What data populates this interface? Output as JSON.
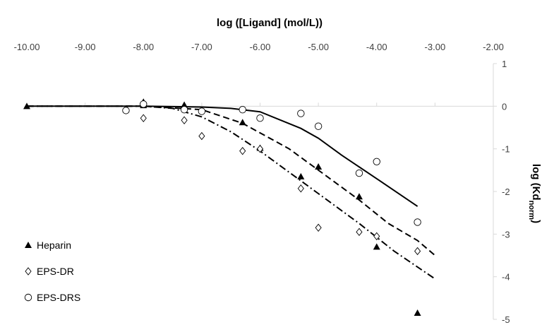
{
  "chart_data": {
    "type": "scatter",
    "xlabel": "log ([Ligand] (mol/L))",
    "ylabel": "log (Kd",
    "ylabel_subscript": "norm",
    "ylabel_suffix": ")",
    "xlim": [
      -10,
      -2
    ],
    "ylim": [
      -5,
      1
    ],
    "x_ticks": [
      -10,
      -9,
      -8,
      -7,
      -6,
      -5,
      -4,
      -3,
      -2
    ],
    "x_tick_labels": [
      "-10.00",
      "-9.00",
      "-8.00",
      "-7.00",
      "-6.00",
      "-5.00",
      "-4.00",
      "-3.00",
      "-2.00"
    ],
    "y_ticks": [
      1,
      0,
      -1,
      -2,
      -3,
      -4,
      -5
    ],
    "y_tick_labels": [
      "1",
      "0",
      "-1",
      "-2",
      "-3",
      "-4",
      "-5"
    ],
    "x_axis_position": "top",
    "y_axis_position": "right",
    "grid": false,
    "legend_position": "bottom-left",
    "series": [
      {
        "name": "Heparin",
        "marker": "filled-triangle",
        "points": [
          {
            "x": -10.0,
            "y": 0.0
          },
          {
            "x": -8.0,
            "y": 0.1
          },
          {
            "x": -8.0,
            "y": 0.02
          },
          {
            "x": -7.3,
            "y": 0.03
          },
          {
            "x": -6.3,
            "y": -0.38
          },
          {
            "x": -6.0,
            "y": -0.98
          },
          {
            "x": -5.3,
            "y": -1.65
          },
          {
            "x": -5.0,
            "y": -1.42
          },
          {
            "x": -4.3,
            "y": -2.12
          },
          {
            "x": -4.0,
            "y": -3.3
          },
          {
            "x": -3.3,
            "y": -4.85
          }
        ],
        "trend_style": "dashed",
        "trend": [
          {
            "x": -10.0,
            "y": 0.0
          },
          {
            "x": -8.0,
            "y": 0.0
          },
          {
            "x": -7.0,
            "y": -0.08
          },
          {
            "x": -6.3,
            "y": -0.4
          },
          {
            "x": -5.5,
            "y": -1.0
          },
          {
            "x": -5.0,
            "y": -1.5
          },
          {
            "x": -4.3,
            "y": -2.2
          },
          {
            "x": -3.8,
            "y": -2.75
          },
          {
            "x": -3.3,
            "y": -3.15
          },
          {
            "x": -3.0,
            "y": -3.5
          }
        ]
      },
      {
        "name": "EPS-DR",
        "marker": "open-diamond",
        "points": [
          {
            "x": -8.0,
            "y": -0.28
          },
          {
            "x": -7.3,
            "y": -0.33
          },
          {
            "x": -7.0,
            "y": -0.7
          },
          {
            "x": -6.3,
            "y": -1.05
          },
          {
            "x": -6.0,
            "y": -1.0
          },
          {
            "x": -5.3,
            "y": -1.93
          },
          {
            "x": -5.0,
            "y": -2.85
          },
          {
            "x": -4.3,
            "y": -2.95
          },
          {
            "x": -4.0,
            "y": -3.05
          },
          {
            "x": -3.3,
            "y": -3.4
          }
        ],
        "trend_style": "dash-dot",
        "trend": [
          {
            "x": -10.0,
            "y": 0.0
          },
          {
            "x": -8.0,
            "y": 0.0
          },
          {
            "x": -7.5,
            "y": -0.05
          },
          {
            "x": -7.0,
            "y": -0.25
          },
          {
            "x": -6.5,
            "y": -0.6
          },
          {
            "x": -6.0,
            "y": -1.05
          },
          {
            "x": -5.3,
            "y": -1.75
          },
          {
            "x": -5.0,
            "y": -2.05
          },
          {
            "x": -4.3,
            "y": -2.75
          },
          {
            "x": -3.7,
            "y": -3.4
          },
          {
            "x": -3.0,
            "y": -4.05
          }
        ]
      },
      {
        "name": "EPS-DRS",
        "marker": "open-circle",
        "points": [
          {
            "x": -8.3,
            "y": -0.1
          },
          {
            "x": -8.0,
            "y": 0.05
          },
          {
            "x": -7.3,
            "y": -0.08
          },
          {
            "x": -7.0,
            "y": -0.12
          },
          {
            "x": -6.3,
            "y": -0.08
          },
          {
            "x": -6.0,
            "y": -0.28
          },
          {
            "x": -5.3,
            "y": -0.17
          },
          {
            "x": -5.0,
            "y": -0.47
          },
          {
            "x": -4.3,
            "y": -1.57
          },
          {
            "x": -4.0,
            "y": -1.3
          },
          {
            "x": -3.3,
            "y": -2.72
          }
        ],
        "trend_style": "solid",
        "trend": [
          {
            "x": -10.0,
            "y": 0.0
          },
          {
            "x": -8.0,
            "y": 0.0
          },
          {
            "x": -7.0,
            "y": -0.02
          },
          {
            "x": -6.5,
            "y": -0.05
          },
          {
            "x": -6.0,
            "y": -0.13
          },
          {
            "x": -5.3,
            "y": -0.52
          },
          {
            "x": -5.0,
            "y": -0.75
          },
          {
            "x": -4.6,
            "y": -1.15
          },
          {
            "x": -4.0,
            "y": -1.7
          },
          {
            "x": -3.3,
            "y": -2.35
          }
        ]
      }
    ]
  }
}
